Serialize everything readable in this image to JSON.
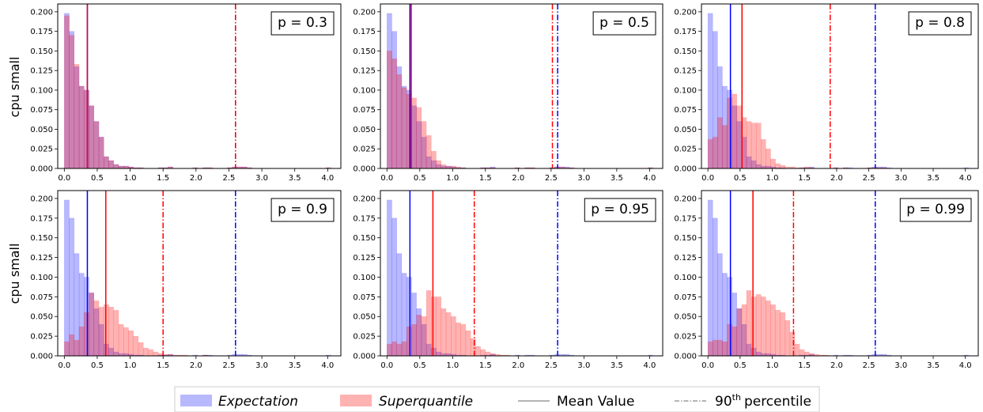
{
  "ylabels": [
    "cpu small",
    "cpu small"
  ],
  "colors": {
    "expectation": "#0000ff",
    "superquantile": "#ff0000"
  },
  "legend": [
    {
      "label": "Expectation",
      "style": "patch-blue"
    },
    {
      "label": "Superquantile",
      "style": "patch-red"
    },
    {
      "label": "Mean Value",
      "style": "line-solid"
    },
    {
      "label": "percentile",
      "prefix": "90",
      "sup": "th",
      "style": "line-dashdot"
    }
  ],
  "chart_data": {
    "type": "bar",
    "grid": false,
    "legend_position": "bottom",
    "xlim": [
      -0.1,
      4.2
    ],
    "ylim": [
      0,
      0.21
    ],
    "xticks": [
      0.0,
      0.5,
      1.0,
      1.5,
      2.0,
      2.5,
      3.0,
      3.5,
      4.0
    ],
    "yticks": [
      0.0,
      0.025,
      0.05,
      0.075,
      0.1,
      0.125,
      0.15,
      0.175,
      0.2
    ],
    "bin_start": 0.0,
    "bin_width": 0.075,
    "expectation": {
      "values": [
        0.198,
        0.175,
        0.13,
        0.105,
        0.1,
        0.08,
        0.06,
        0.04,
        0.015,
        0.01,
        0.005,
        0.003,
        0.003,
        0.002,
        0.001,
        0.001,
        0.0,
        0.0,
        0.0,
        0.001,
        0.001,
        0.002,
        0.0,
        0.0,
        0.0,
        0.0,
        0.001,
        0.0,
        0.001,
        0.001,
        0.0,
        0.0,
        0.0,
        0.001,
        0.002,
        0.002,
        0.002,
        0.001,
        0.0,
        0.0,
        0.0,
        0.0,
        0.0,
        0.0,
        0.0,
        0.0,
        0.0,
        0.0,
        0.0,
        0.0,
        0.0,
        0.0,
        0.0,
        0.001
      ],
      "mean": 0.35,
      "p90": 2.6
    },
    "panels": [
      {
        "label": "p = 0.3",
        "row": 0,
        "col": 0,
        "mean": 0.35,
        "p90": 2.6,
        "values": [
          0.195,
          0.17,
          0.133,
          0.105,
          0.1,
          0.08,
          0.06,
          0.04,
          0.015,
          0.01,
          0.005,
          0.003,
          0.003,
          0.002,
          0.001,
          0.001,
          0.0,
          0.0,
          0.0,
          0.001,
          0.001,
          0.002,
          0.0,
          0.0,
          0.0,
          0.0,
          0.001,
          0.0,
          0.001,
          0.001,
          0.0,
          0.0,
          0.0,
          0.001,
          0.002,
          0.002,
          0.002,
          0.001,
          0.0,
          0.0,
          0.0,
          0.0,
          0.0,
          0.0,
          0.0,
          0.0,
          0.0,
          0.0,
          0.0,
          0.0,
          0.0,
          0.0,
          0.0,
          0.001
        ]
      },
      {
        "label": "p = 0.5",
        "row": 0,
        "col": 1,
        "mean": 0.37,
        "p90": 2.52,
        "values": [
          0.15,
          0.14,
          0.12,
          0.103,
          0.095,
          0.09,
          0.078,
          0.06,
          0.042,
          0.022,
          0.01,
          0.005,
          0.003,
          0.003,
          0.002,
          0.001,
          0.0,
          0.0,
          0.0,
          0.001,
          0.001,
          0.001,
          0.0,
          0.0,
          0.0,
          0.0,
          0.001,
          0.0,
          0.001,
          0.001,
          0.0,
          0.0,
          0.0,
          0.001,
          0.002,
          0.002,
          0.001,
          0.001,
          0.0,
          0.0,
          0.0,
          0.0,
          0.0,
          0.0,
          0.0,
          0.0,
          0.0,
          0.0,
          0.0,
          0.0,
          0.0,
          0.0,
          0.0,
          0.001
        ]
      },
      {
        "label": "p = 0.8",
        "row": 0,
        "col": 2,
        "mean": 0.53,
        "p90": 1.9,
        "values": [
          0.037,
          0.04,
          0.065,
          0.055,
          0.09,
          0.095,
          0.08,
          0.065,
          0.06,
          0.058,
          0.058,
          0.037,
          0.025,
          0.012,
          0.006,
          0.004,
          0.002,
          0.002,
          0.001,
          0.001,
          0.002,
          0.001,
          0.0,
          0.0,
          0.0,
          0.0,
          0.001,
          0.0,
          0.001,
          0.0,
          0.0,
          0.0,
          0.0,
          0.001,
          0.001,
          0.001,
          0.001,
          0.0,
          0.0,
          0.0,
          0.0,
          0.0,
          0.0,
          0.0,
          0.0,
          0.0,
          0.0,
          0.0,
          0.0,
          0.0,
          0.0,
          0.0,
          0.0,
          0.0
        ]
      },
      {
        "label": "p = 0.9",
        "row": 1,
        "col": 0,
        "mean": 0.63,
        "p90": 1.5,
        "values": [
          0.018,
          0.027,
          0.02,
          0.037,
          0.055,
          0.08,
          0.07,
          0.062,
          0.065,
          0.062,
          0.058,
          0.04,
          0.036,
          0.032,
          0.025,
          0.017,
          0.01,
          0.008,
          0.005,
          0.003,
          0.002,
          0.002,
          0.001,
          0.001,
          0.001,
          0.0,
          0.0,
          0.0,
          0.001,
          0.0,
          0.0,
          0.0,
          0.0,
          0.0,
          0.0,
          0.0,
          0.0,
          0.0,
          0.0,
          0.0,
          0.0,
          0.0,
          0.0,
          0.0,
          0.0,
          0.0,
          0.0,
          0.0,
          0.0,
          0.0,
          0.0,
          0.0,
          0.0,
          0.0
        ]
      },
      {
        "label": "p = 0.95",
        "row": 1,
        "col": 1,
        "mean": 0.7,
        "p90": 1.33,
        "values": [
          0.015,
          0.018,
          0.015,
          0.018,
          0.037,
          0.04,
          0.052,
          0.05,
          0.083,
          0.075,
          0.075,
          0.06,
          0.055,
          0.05,
          0.042,
          0.04,
          0.032,
          0.022,
          0.012,
          0.008,
          0.005,
          0.003,
          0.002,
          0.001,
          0.001,
          0.0,
          0.0,
          0.0,
          0.0,
          0.0,
          0.0,
          0.0,
          0.0,
          0.0,
          0.0,
          0.0,
          0.0,
          0.0,
          0.0,
          0.0,
          0.0,
          0.0,
          0.0,
          0.0,
          0.0,
          0.0,
          0.0,
          0.0,
          0.0,
          0.0,
          0.0,
          0.0,
          0.0,
          0.0
        ]
      },
      {
        "label": "p = 0.99",
        "row": 1,
        "col": 2,
        "mean": 0.7,
        "p90": 1.33,
        "values": [
          0.018,
          0.02,
          0.02,
          0.018,
          0.04,
          0.037,
          0.06,
          0.065,
          0.083,
          0.075,
          0.078,
          0.075,
          0.07,
          0.065,
          0.058,
          0.055,
          0.045,
          0.03,
          0.015,
          0.008,
          0.005,
          0.003,
          0.002,
          0.001,
          0.001,
          0.0,
          0.0,
          0.0,
          0.0,
          0.0,
          0.0,
          0.0,
          0.0,
          0.0,
          0.0,
          0.0,
          0.0,
          0.0,
          0.0,
          0.0,
          0.0,
          0.0,
          0.0,
          0.0,
          0.0,
          0.0,
          0.0,
          0.0,
          0.0,
          0.0,
          0.0,
          0.0,
          0.0,
          0.0
        ]
      }
    ]
  }
}
